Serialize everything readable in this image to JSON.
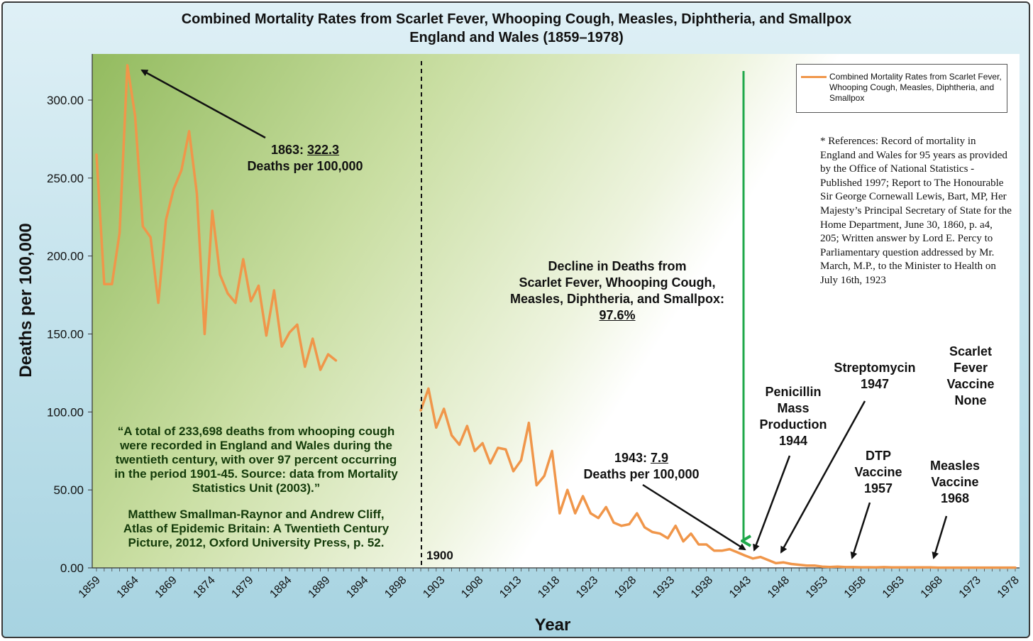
{
  "chart_data": {
    "type": "line",
    "title": "Combined Mortality Rates from Scarlet Fever, Whooping Cough, Measles, Diphtheria, and Smallpox",
    "subtitle": "England and Wales (1859–1978)",
    "xlabel": "Year",
    "ylabel": "Deaths per 100,000",
    "ylim": [
      0,
      325
    ],
    "y_ticks": [
      "0.00",
      "50.00",
      "100.00",
      "150.00",
      "200.00",
      "250.00",
      "300.00"
    ],
    "y_tick_values": [
      0,
      50,
      100,
      150,
      200,
      250,
      300
    ],
    "x_ticks": [
      "1859",
      "1864",
      "1869",
      "1874",
      "1879",
      "1884",
      "1889",
      "1894",
      "1898",
      "1903",
      "1908",
      "1913",
      "1918",
      "1923",
      "1928",
      "1933",
      "1938",
      "1943",
      "1948",
      "1953",
      "1958",
      "1963",
      "1968",
      "1973",
      "1978"
    ],
    "grid": false,
    "legend_position": "top-right",
    "series": [
      {
        "name": "Combined Mortality Rates from Scarlet Fever, Whooping Cough, Measles, Diphtheria, and Smallpox",
        "color": "#f0964a",
        "segments": [
          [
            [
              1859,
              265
            ],
            [
              1860,
              182
            ],
            [
              1861,
              182
            ],
            [
              1862,
              215
            ],
            [
              1863,
              322.3
            ],
            [
              1864,
              290
            ],
            [
              1865,
              219
            ],
            [
              1866,
              212
            ],
            [
              1867,
              170
            ],
            [
              1868,
              223
            ],
            [
              1869,
              243
            ],
            [
              1870,
              255
            ],
            [
              1871,
              280
            ],
            [
              1872,
              240
            ],
            [
              1873,
              150
            ],
            [
              1874,
              229
            ],
            [
              1875,
              188
            ],
            [
              1876,
              176
            ],
            [
              1877,
              170
            ],
            [
              1878,
              198
            ],
            [
              1879,
              171
            ],
            [
              1880,
              181
            ],
            [
              1881,
              149
            ],
            [
              1882,
              178
            ],
            [
              1883,
              142
            ],
            [
              1884,
              151
            ],
            [
              1885,
              156
            ],
            [
              1886,
              129
            ],
            [
              1887,
              147
            ],
            [
              1888,
              127
            ],
            [
              1889,
              137
            ],
            [
              1890,
              133
            ]
          ],
          [
            [
              1901,
              101
            ],
            [
              1902,
              115
            ],
            [
              1903,
              90
            ],
            [
              1904,
              102
            ],
            [
              1905,
              85
            ],
            [
              1906,
              79
            ],
            [
              1907,
              91
            ],
            [
              1908,
              75
            ],
            [
              1909,
              80
            ],
            [
              1910,
              67
            ],
            [
              1911,
              77
            ],
            [
              1912,
              76
            ],
            [
              1913,
              62
            ],
            [
              1914,
              69
            ],
            [
              1915,
              93
            ],
            [
              1916,
              53
            ],
            [
              1917,
              59
            ],
            [
              1918,
              75
            ],
            [
              1919,
              35
            ],
            [
              1920,
              50
            ],
            [
              1921,
              35
            ],
            [
              1922,
              46
            ],
            [
              1923,
              35
            ],
            [
              1924,
              32
            ],
            [
              1925,
              39
            ],
            [
              1926,
              29
            ],
            [
              1927,
              27
            ],
            [
              1928,
              28
            ],
            [
              1929,
              35
            ],
            [
              1930,
              26
            ],
            [
              1931,
              23
            ],
            [
              1932,
              22
            ],
            [
              1933,
              19
            ],
            [
              1934,
              27
            ],
            [
              1935,
              17
            ],
            [
              1936,
              22
            ],
            [
              1937,
              15
            ],
            [
              1938,
              15
            ],
            [
              1939,
              11
            ],
            [
              1940,
              11
            ],
            [
              1941,
              12
            ],
            [
              1942,
              10
            ],
            [
              1943,
              7.9
            ],
            [
              1944,
              6
            ],
            [
              1945,
              7
            ],
            [
              1946,
              5
            ],
            [
              1947,
              3
            ],
            [
              1948,
              3.5
            ],
            [
              1949,
              2.5
            ],
            [
              1950,
              2
            ],
            [
              1951,
              1.5
            ],
            [
              1952,
              1.5
            ],
            [
              1953,
              0.8
            ],
            [
              1954,
              0.6
            ],
            [
              1955,
              0.8
            ],
            [
              1956,
              0.5
            ],
            [
              1957,
              0.5
            ],
            [
              1958,
              0.4
            ],
            [
              1959,
              0.4
            ],
            [
              1960,
              0.3
            ],
            [
              1961,
              0.5
            ],
            [
              1962,
              0.3
            ],
            [
              1963,
              0.3
            ],
            [
              1964,
              0.3
            ],
            [
              1965,
              0.3
            ],
            [
              1966,
              0.3
            ],
            [
              1967,
              0.3
            ],
            [
              1968,
              0.2
            ],
            [
              1969,
              0.2
            ],
            [
              1970,
              0.2
            ],
            [
              1971,
              0.2
            ],
            [
              1972,
              0.2
            ],
            [
              1973,
              0.2
            ],
            [
              1974,
              0.2
            ],
            [
              1975,
              0.2
            ],
            [
              1976,
              0.2
            ],
            [
              1977,
              0.2
            ],
            [
              1978,
              0.2
            ]
          ]
        ]
      }
    ],
    "annotations": {
      "peak_year": "1863: ",
      "peak_value": "322.3",
      "peak_unit": "Deaths per 100,000",
      "low_year": "1943: ",
      "low_value": "7.9",
      "low_unit": "Deaths per 100,000",
      "divider_label": "1900",
      "decline_line1": "Decline in Deaths from",
      "decline_line2": "Scarlet Fever, Whooping Cough,",
      "decline_line3": "Measles, Diphtheria, and Smallpox:",
      "decline_value": "97.6%",
      "penicillin": [
        "Penicillin",
        "Mass",
        "Production",
        "1944"
      ],
      "streptomycin": [
        "Streptomycin",
        "1947"
      ],
      "dtp": [
        "DTP",
        "Vaccine",
        "1957"
      ],
      "measles": [
        "Measles",
        "Vaccine",
        "1968"
      ],
      "scarlet": [
        "Scarlet",
        "Fever",
        "Vaccine",
        "None"
      ],
      "quote": [
        "“A total of 233,698 deaths from whooping cough",
        "were recorded in England and Wales during the",
        "twentieth century, with over 97 percent occurring",
        "in the period 1901-45. Source: data from Mortality",
        "Statistics Unit (2003).”"
      ],
      "citation": [
        "Matthew Smallman-Raynor and Andrew Cliff,",
        "Atlas of Epidemic Britain: A Twentieth Century",
        "Picture, 2012, Oxford University Press, p. 52."
      ],
      "references": "* References: Record of mortality in England and Wales for 95 years as provided by the Office of National Statistics - Published 1997; Report to The Honourable Sir George Cornewall Lewis, Bart, MP, Her Majesty’s Principal Secretary of State for the Home Department, June 30, 1860, p. a4, 205; Written answer by Lord E. Percy to Parliamentary question addressed by Mr. March, M.P., to the Minister to Health on July 16th, 1923"
    }
  },
  "colors": {
    "line": "#f0964a",
    "green_arrow": "#1fa84a",
    "quote_text": "#143b0a"
  }
}
